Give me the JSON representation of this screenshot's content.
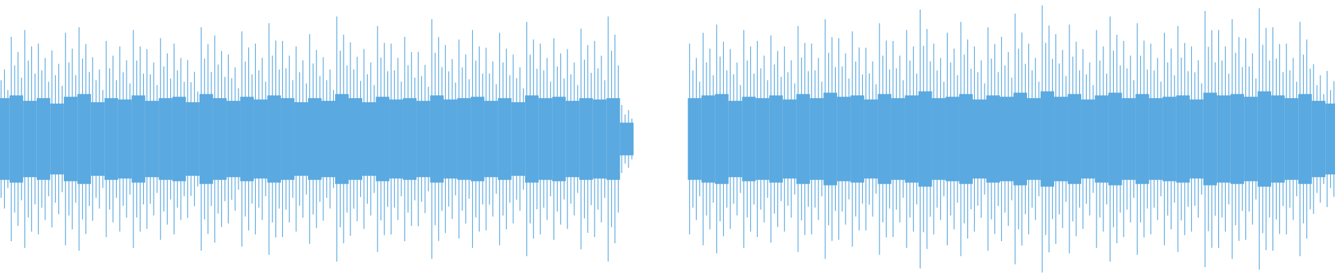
{
  "chart_data": {
    "type": "waveform",
    "xlim": [
      0,
      1568
    ],
    "ylim": [
      -1,
      1
    ],
    "x": [
      0,
      16,
      32,
      48,
      64,
      80,
      96,
      112,
      128,
      144,
      160,
      176,
      192,
      208,
      224,
      240,
      256,
      272,
      288,
      304,
      320,
      336,
      352,
      368,
      384,
      400,
      416,
      432,
      448,
      464,
      480,
      496,
      512,
      528,
      544,
      560,
      576,
      592,
      608,
      624,
      640,
      656,
      672,
      688,
      704,
      720,
      736,
      752,
      768,
      784,
      800,
      816,
      832,
      848,
      864,
      880,
      896,
      912,
      928,
      944,
      960,
      976,
      992,
      1008,
      1024,
      1040,
      1056,
      1072,
      1088,
      1104,
      1120,
      1136,
      1152,
      1168,
      1184,
      1200,
      1216,
      1232,
      1248,
      1264,
      1280,
      1296,
      1312,
      1328,
      1344,
      1360,
      1376,
      1392,
      1408,
      1424,
      1440,
      1456,
      1472,
      1488,
      1504,
      1520,
      1536,
      1552,
      1568
    ],
    "series": [
      {
        "color": "#5aa9e0",
        "values": [
          0.6,
          0.75,
          0.8,
          0.7,
          0.65,
          0.78,
          0.82,
          0.6,
          0.72,
          0.68,
          0.8,
          0.66,
          0.74,
          0.7,
          0.58,
          0.82,
          0.76,
          0.62,
          0.79,
          0.7,
          0.85,
          0.72,
          0.68,
          0.77,
          0.6,
          0.9,
          0.71,
          0.66,
          0.83,
          0.7,
          0.75,
          0.64,
          0.88,
          0.69,
          0.73,
          0.8,
          0.67,
          0.78,
          0.62,
          0.86,
          0.7,
          0.74,
          0.66,
          0.81,
          0.72,
          0.9,
          0.25,
          null,
          null,
          null,
          null,
          0.7,
          0.78,
          0.84,
          0.66,
          0.8,
          0.72,
          0.76,
          0.68,
          0.83,
          0.7,
          0.88,
          0.74,
          0.79,
          0.67,
          0.85,
          0.72,
          0.8,
          0.95,
          0.7,
          0.78,
          0.86,
          0.68,
          0.82,
          0.75,
          0.92,
          0.7,
          0.98,
          0.77,
          0.84,
          0.66,
          0.8,
          0.9,
          0.72,
          0.85,
          0.7,
          0.78,
          0.83,
          0.68,
          0.94,
          0.8,
          0.88,
          0.74,
          0.96,
          0.82,
          0.7,
          0.86,
          0.55,
          0.5
        ]
      },
      {
        "color": "#5aa9e0",
        "values": [
          0.3,
          0.32,
          0.28,
          0.3,
          0.26,
          0.31,
          0.33,
          0.27,
          0.3,
          0.29,
          0.32,
          0.28,
          0.3,
          0.31,
          0.27,
          0.33,
          0.3,
          0.28,
          0.31,
          0.29,
          0.32,
          0.3,
          0.27,
          0.3,
          0.28,
          0.33,
          0.3,
          0.27,
          0.31,
          0.29,
          0.3,
          0.28,
          0.32,
          0.29,
          0.3,
          0.31,
          0.28,
          0.3,
          0.27,
          0.32,
          0.3,
          0.31,
          0.28,
          0.3,
          0.29,
          0.3,
          0.12,
          null,
          null,
          null,
          null,
          0.3,
          0.32,
          0.33,
          0.28,
          0.31,
          0.3,
          0.32,
          0.29,
          0.33,
          0.3,
          0.34,
          0.31,
          0.32,
          0.29,
          0.33,
          0.3,
          0.32,
          0.35,
          0.3,
          0.31,
          0.33,
          0.29,
          0.32,
          0.31,
          0.34,
          0.3,
          0.35,
          0.31,
          0.33,
          0.29,
          0.32,
          0.34,
          0.3,
          0.33,
          0.3,
          0.31,
          0.32,
          0.29,
          0.34,
          0.32,
          0.33,
          0.31,
          0.35,
          0.32,
          0.3,
          0.33,
          0.28,
          0.26
        ]
      }
    ]
  }
}
